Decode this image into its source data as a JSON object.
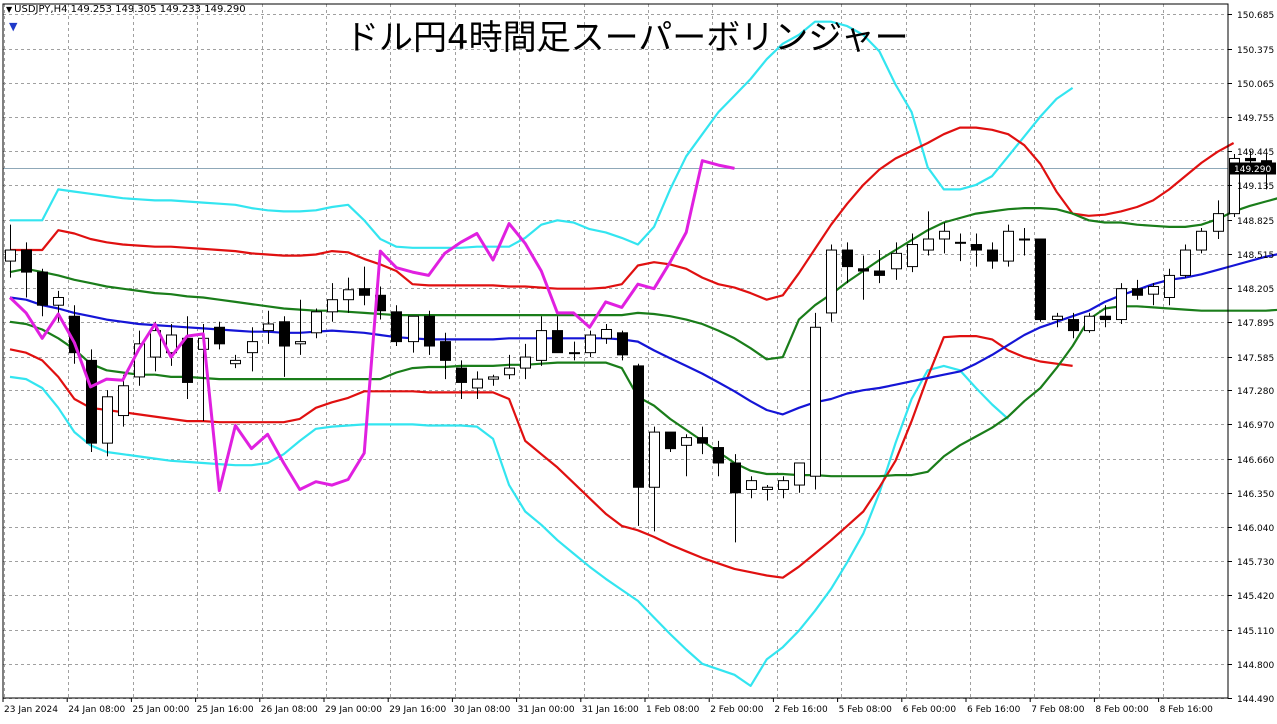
{
  "header": {
    "symbol_line": "USDJPY,H4  149.253 149.305 149.233 149.290",
    "title": "ドル円4時間足スーパーボリンジャー",
    "current_price_label": "149.290"
  },
  "colors": {
    "background": "#ffffff",
    "grid": "#a0a0a0",
    "sma": "#1515d6",
    "band1": "#1a7d1a",
    "band2": "#e01010",
    "band3": "#33e5f0",
    "lagging_span": "#e020e0",
    "candle_bear": "#000000",
    "candle_bull": "#ffffff",
    "price_line": "#8fa8b8",
    "price_badge_bg": "#000000",
    "price_badge_text": "#ffffff"
  },
  "chart_data": {
    "type": "candlestick",
    "ylim": [
      144.49,
      150.78
    ],
    "y_ticks": [
      "150.685",
      "150.375",
      "150.065",
      "149.755",
      "149.445",
      "149.135",
      "148.825",
      "148.515",
      "148.205",
      "147.895",
      "147.585",
      "147.280",
      "146.970",
      "146.660",
      "146.350",
      "146.040",
      "145.730",
      "145.420",
      "145.110",
      "144.800",
      "144.490"
    ],
    "x_ticks": [
      "23 Jan 2024",
      "24 Jan 08:00",
      "25 Jan 00:00",
      "25 Jan 16:00",
      "26 Jan 08:00",
      "29 Jan 00:00",
      "29 Jan 16:00",
      "30 Jan 08:00",
      "31 Jan 00:00",
      "31 Jan 16:00",
      "1 Feb 08:00",
      "2 Feb 00:00",
      "2 Feb 16:00",
      "5 Feb 08:00",
      "6 Feb 00:00",
      "6 Feb 16:00",
      "7 Feb 08:00",
      "8 Feb 00:00",
      "8 Feb 16:00"
    ],
    "last_price": 149.29,
    "candles": [
      {
        "o": 148.45,
        "h": 148.78,
        "l": 148.3,
        "c": 148.55
      },
      {
        "o": 148.55,
        "h": 148.62,
        "l": 148.12,
        "c": 148.35
      },
      {
        "o": 148.35,
        "h": 148.38,
        "l": 147.95,
        "c": 148.05
      },
      {
        "o": 148.05,
        "h": 148.18,
        "l": 147.9,
        "c": 148.12
      },
      {
        "o": 147.95,
        "h": 148.05,
        "l": 147.52,
        "c": 147.62
      },
      {
        "o": 147.55,
        "h": 147.65,
        "l": 146.72,
        "c": 146.8
      },
      {
        "o": 146.8,
        "h": 147.28,
        "l": 146.68,
        "c": 147.22
      },
      {
        "o": 147.05,
        "h": 147.42,
        "l": 146.95,
        "c": 147.32
      },
      {
        "o": 147.4,
        "h": 147.82,
        "l": 147.32,
        "c": 147.7
      },
      {
        "o": 147.58,
        "h": 147.9,
        "l": 147.45,
        "c": 147.82
      },
      {
        "o": 147.62,
        "h": 147.88,
        "l": 147.5,
        "c": 147.78
      },
      {
        "o": 147.75,
        "h": 147.95,
        "l": 147.2,
        "c": 147.35
      },
      {
        "o": 147.65,
        "h": 147.88,
        "l": 147.0,
        "c": 147.75
      },
      {
        "o": 147.85,
        "h": 147.9,
        "l": 147.65,
        "c": 147.7
      },
      {
        "o": 147.52,
        "h": 147.6,
        "l": 147.48,
        "c": 147.55
      },
      {
        "o": 147.62,
        "h": 147.85,
        "l": 147.45,
        "c": 147.72
      },
      {
        "o": 147.82,
        "h": 148.0,
        "l": 147.7,
        "c": 147.88
      },
      {
        "o": 147.9,
        "h": 147.95,
        "l": 147.4,
        "c": 147.68
      },
      {
        "o": 147.7,
        "h": 148.1,
        "l": 147.6,
        "c": 147.72
      },
      {
        "o": 147.8,
        "h": 148.02,
        "l": 147.75,
        "c": 147.99
      },
      {
        "o": 147.99,
        "h": 148.25,
        "l": 147.9,
        "c": 148.1
      },
      {
        "o": 148.1,
        "h": 148.3,
        "l": 147.98,
        "c": 148.19
      },
      {
        "o": 148.2,
        "h": 148.4,
        "l": 148.05,
        "c": 148.14
      },
      {
        "o": 148.14,
        "h": 148.22,
        "l": 147.92,
        "c": 148.0
      },
      {
        "o": 147.99,
        "h": 148.05,
        "l": 147.68,
        "c": 147.72
      },
      {
        "o": 147.72,
        "h": 147.92,
        "l": 147.62,
        "c": 147.95
      },
      {
        "o": 147.95,
        "h": 148.0,
        "l": 147.6,
        "c": 147.68
      },
      {
        "o": 147.72,
        "h": 147.8,
        "l": 147.38,
        "c": 147.55
      },
      {
        "o": 147.48,
        "h": 147.55,
        "l": 147.2,
        "c": 147.35
      },
      {
        "o": 147.3,
        "h": 147.45,
        "l": 147.2,
        "c": 147.38
      },
      {
        "o": 147.38,
        "h": 147.42,
        "l": 147.32,
        "c": 147.4
      },
      {
        "o": 147.42,
        "h": 147.6,
        "l": 147.38,
        "c": 147.48
      },
      {
        "o": 147.48,
        "h": 147.7,
        "l": 147.38,
        "c": 147.58
      },
      {
        "o": 147.55,
        "h": 147.95,
        "l": 147.5,
        "c": 147.82
      },
      {
        "o": 147.82,
        "h": 147.95,
        "l": 147.62,
        "c": 147.62
      },
      {
        "o": 147.62,
        "h": 147.72,
        "l": 147.55,
        "c": 147.62
      },
      {
        "o": 147.62,
        "h": 147.82,
        "l": 147.58,
        "c": 147.78
      },
      {
        "o": 147.75,
        "h": 147.88,
        "l": 147.7,
        "c": 147.83
      },
      {
        "o": 147.8,
        "h": 147.82,
        "l": 147.55,
        "c": 147.6
      },
      {
        "o": 147.5,
        "h": 147.52,
        "l": 146.05,
        "c": 146.4
      },
      {
        "o": 146.4,
        "h": 146.95,
        "l": 146.0,
        "c": 146.9
      },
      {
        "o": 146.9,
        "h": 146.9,
        "l": 146.72,
        "c": 146.75
      },
      {
        "o": 146.78,
        "h": 146.88,
        "l": 146.5,
        "c": 146.85
      },
      {
        "o": 146.85,
        "h": 146.95,
        "l": 146.7,
        "c": 146.8
      },
      {
        "o": 146.76,
        "h": 146.82,
        "l": 146.5,
        "c": 146.62
      },
      {
        "o": 146.62,
        "h": 146.7,
        "l": 145.9,
        "c": 146.35
      },
      {
        "o": 146.38,
        "h": 146.5,
        "l": 146.3,
        "c": 146.46
      },
      {
        "o": 146.38,
        "h": 146.42,
        "l": 146.28,
        "c": 146.4
      },
      {
        "o": 146.38,
        "h": 146.5,
        "l": 146.3,
        "c": 146.46
      },
      {
        "o": 146.42,
        "h": 146.62,
        "l": 146.35,
        "c": 146.62
      },
      {
        "o": 146.5,
        "h": 147.98,
        "l": 146.38,
        "c": 147.85
      },
      {
        "o": 147.98,
        "h": 148.6,
        "l": 147.9,
        "c": 148.55
      },
      {
        "o": 148.55,
        "h": 148.62,
        "l": 148.25,
        "c": 148.4
      },
      {
        "o": 148.38,
        "h": 148.5,
        "l": 148.1,
        "c": 148.36
      },
      {
        "o": 148.36,
        "h": 148.55,
        "l": 148.25,
        "c": 148.32
      },
      {
        "o": 148.38,
        "h": 148.62,
        "l": 148.28,
        "c": 148.52
      },
      {
        "o": 148.4,
        "h": 148.7,
        "l": 148.35,
        "c": 148.6
      },
      {
        "o": 148.55,
        "h": 148.9,
        "l": 148.5,
        "c": 148.65
      },
      {
        "o": 148.65,
        "h": 148.8,
        "l": 148.52,
        "c": 148.72
      },
      {
        "o": 148.62,
        "h": 148.7,
        "l": 148.45,
        "c": 148.62
      },
      {
        "o": 148.6,
        "h": 148.7,
        "l": 148.4,
        "c": 148.55
      },
      {
        "o": 148.55,
        "h": 148.62,
        "l": 148.38,
        "c": 148.45
      },
      {
        "o": 148.45,
        "h": 148.78,
        "l": 148.4,
        "c": 148.72
      },
      {
        "o": 148.65,
        "h": 148.75,
        "l": 148.5,
        "c": 148.65
      },
      {
        "o": 148.65,
        "h": 148.65,
        "l": 147.9,
        "c": 147.92
      },
      {
        "o": 147.92,
        "h": 147.98,
        "l": 147.85,
        "c": 147.95
      },
      {
        "o": 147.92,
        "h": 147.98,
        "l": 147.75,
        "c": 147.82
      },
      {
        "o": 147.82,
        "h": 147.98,
        "l": 147.8,
        "c": 147.95
      },
      {
        "o": 147.95,
        "h": 148.05,
        "l": 147.85,
        "c": 147.92
      },
      {
        "o": 147.92,
        "h": 148.25,
        "l": 147.88,
        "c": 148.2
      },
      {
        "o": 148.2,
        "h": 148.28,
        "l": 148.1,
        "c": 148.14
      },
      {
        "o": 148.15,
        "h": 148.25,
        "l": 148.05,
        "c": 148.22
      },
      {
        "o": 148.12,
        "h": 148.38,
        "l": 148.05,
        "c": 148.32
      },
      {
        "o": 148.32,
        "h": 148.6,
        "l": 148.3,
        "c": 148.55
      },
      {
        "o": 148.55,
        "h": 148.75,
        "l": 148.52,
        "c": 148.72
      },
      {
        "o": 148.72,
        "h": 149.0,
        "l": 148.65,
        "c": 148.88
      },
      {
        "o": 148.88,
        "h": 149.42,
        "l": 148.85,
        "c": 149.38
      },
      {
        "o": 149.38,
        "h": 149.45,
        "l": 149.3,
        "c": 149.36
      },
      {
        "o": 149.36,
        "h": 149.42,
        "l": 149.1,
        "c": 149.32
      },
      {
        "o": 149.25,
        "h": 149.31,
        "l": 149.23,
        "c": 149.29
      }
    ],
    "sma": [
      148.12,
      148.1,
      148.05,
      148.02,
      147.98,
      147.95,
      147.92,
      147.9,
      147.88,
      147.87,
      147.86,
      147.85,
      147.84,
      147.83,
      147.82,
      147.81,
      147.81,
      147.8,
      147.8,
      147.81,
      147.82,
      147.81,
      147.8,
      147.78,
      147.76,
      147.75,
      147.74,
      147.74,
      147.74,
      147.74,
      147.74,
      147.75,
      147.75,
      147.75,
      147.75,
      147.75,
      147.75,
      147.75,
      147.74,
      147.72,
      147.64,
      147.57,
      147.5,
      147.43,
      147.35,
      147.27,
      147.18,
      147.1,
      147.06,
      147.12,
      147.17,
      147.2,
      147.25,
      147.28,
      147.3,
      147.33,
      147.36,
      147.39,
      147.42,
      147.45,
      147.52,
      147.6,
      147.69,
      147.78,
      147.85,
      147.9,
      147.95,
      148.0,
      148.08,
      148.14,
      148.19,
      148.24,
      148.28,
      148.3,
      148.33,
      148.37,
      148.41,
      148.45,
      148.49,
      148.52
    ],
    "band_plus1": [
      148.35,
      148.38,
      148.35,
      148.32,
      148.28,
      148.25,
      148.22,
      148.2,
      148.18,
      148.16,
      148.15,
      148.13,
      148.12,
      148.1,
      148.08,
      148.06,
      148.04,
      148.02,
      148.01,
      148.0,
      148.0,
      147.99,
      147.98,
      147.97,
      147.96,
      147.96,
      147.96,
      147.96,
      147.96,
      147.96,
      147.96,
      147.96,
      147.96,
      147.96,
      147.96,
      147.96,
      147.96,
      147.96,
      147.96,
      147.98,
      147.97,
      147.95,
      147.92,
      147.88,
      147.82,
      147.75,
      147.66,
      147.56,
      147.58,
      147.92,
      148.05,
      148.15,
      148.26,
      148.36,
      148.46,
      148.55,
      148.64,
      148.73,
      148.8,
      148.84,
      148.88,
      148.9,
      148.92,
      148.93,
      148.93,
      148.92,
      148.88,
      148.82,
      148.8,
      148.8,
      148.78,
      148.77,
      148.76,
      148.76,
      148.78,
      148.83,
      148.9,
      148.95,
      148.99,
      149.03
    ],
    "band_minus1": [
      147.9,
      147.88,
      147.83,
      147.75,
      147.65,
      147.52,
      147.46,
      147.44,
      147.42,
      147.42,
      147.4,
      147.4,
      147.39,
      147.38,
      147.38,
      147.38,
      147.38,
      147.38,
      147.38,
      147.38,
      147.38,
      147.38,
      147.38,
      147.38,
      147.44,
      147.48,
      147.49,
      147.49,
      147.5,
      147.5,
      147.5,
      147.51,
      147.51,
      147.52,
      147.53,
      147.53,
      147.53,
      147.53,
      147.48,
      147.22,
      147.14,
      147.02,
      146.92,
      146.82,
      146.72,
      146.62,
      146.55,
      146.52,
      146.52,
      146.51,
      146.51,
      146.5,
      146.5,
      146.5,
      146.5,
      146.51,
      146.51,
      146.54,
      146.68,
      146.78,
      146.86,
      146.94,
      147.04,
      147.18,
      147.3,
      147.48,
      147.68,
      147.92,
      148.02,
      148.04,
      148.04,
      148.03,
      148.02,
      148.01,
      148.0,
      148.0,
      148.0,
      148.0,
      148.0,
      148.01
    ],
    "band_plus2": [
      148.55,
      148.55,
      148.55,
      148.73,
      148.7,
      148.65,
      148.62,
      148.6,
      148.59,
      148.58,
      148.58,
      148.57,
      148.56,
      148.55,
      148.54,
      148.52,
      148.51,
      148.5,
      148.5,
      148.51,
      148.54,
      148.53,
      148.47,
      148.42,
      148.36,
      148.24,
      148.23,
      148.23,
      148.23,
      148.23,
      148.23,
      148.22,
      148.22,
      148.21,
      148.2,
      148.2,
      148.2,
      148.21,
      148.24,
      148.41,
      148.44,
      148.42,
      148.38,
      148.3,
      148.24,
      148.21,
      148.16,
      148.1,
      148.14,
      148.34,
      148.56,
      148.78,
      148.97,
      149.14,
      149.28,
      149.38,
      149.45,
      149.52,
      149.6,
      149.66,
      149.66,
      149.64,
      149.6,
      149.5,
      149.33,
      149.08,
      148.88,
      148.86,
      148.87,
      148.9,
      148.94,
      149.0,
      149.1,
      149.22,
      149.34,
      149.44,
      149.52
    ],
    "band_minus2": [
      147.65,
      147.62,
      147.55,
      147.4,
      147.2,
      147.12,
      147.1,
      147.08,
      147.06,
      147.04,
      147.02,
      147.0,
      147.0,
      146.99,
      146.99,
      146.99,
      146.99,
      146.99,
      147.02,
      147.12,
      147.17,
      147.21,
      147.27,
      147.27,
      147.27,
      147.27,
      147.26,
      147.26,
      147.26,
      147.26,
      147.26,
      147.2,
      146.82,
      146.7,
      146.58,
      146.44,
      146.3,
      146.16,
      146.05,
      146.01,
      145.95,
      145.88,
      145.82,
      145.76,
      145.71,
      145.66,
      145.63,
      145.6,
      145.58,
      145.68,
      145.8,
      145.92,
      146.05,
      146.18,
      146.4,
      146.64,
      147.0,
      147.4,
      147.76,
      147.77,
      147.77,
      147.74,
      147.64,
      147.58,
      147.54,
      147.52,
      147.5
    ],
    "band_plus3": [
      148.82,
      148.82,
      148.82,
      149.1,
      149.08,
      149.06,
      149.04,
      149.02,
      149.01,
      149.0,
      149.0,
      148.99,
      148.98,
      148.97,
      148.96,
      148.93,
      148.91,
      148.9,
      148.9,
      148.91,
      148.94,
      148.96,
      148.82,
      148.65,
      148.58,
      148.57,
      148.57,
      148.57,
      148.57,
      148.58,
      148.58,
      148.58,
      148.66,
      148.78,
      148.82,
      148.8,
      148.74,
      148.71,
      148.66,
      148.6,
      148.76,
      149.1,
      149.4,
      149.6,
      149.8,
      149.95,
      150.1,
      150.28,
      150.42,
      150.5,
      150.62,
      150.62,
      150.58,
      150.5,
      150.35,
      150.05,
      149.8,
      149.3,
      149.1,
      149.1,
      149.14,
      149.22,
      149.4,
      149.58,
      149.76,
      149.92,
      150.02
    ],
    "band_minus3": [
      147.4,
      147.38,
      147.3,
      147.12,
      146.9,
      146.78,
      146.72,
      146.7,
      146.68,
      146.66,
      146.64,
      146.63,
      146.62,
      146.61,
      146.6,
      146.6,
      146.62,
      146.7,
      146.82,
      146.93,
      146.95,
      146.96,
      146.97,
      146.97,
      146.97,
      146.97,
      146.96,
      146.96,
      146.96,
      146.95,
      146.84,
      146.42,
      146.18,
      146.06,
      145.92,
      145.8,
      145.68,
      145.57,
      145.47,
      145.37,
      145.22,
      145.07,
      144.93,
      144.8,
      144.75,
      144.7,
      144.6,
      144.84,
      144.95,
      145.1,
      145.28,
      145.48,
      145.72,
      145.98,
      146.35,
      146.8,
      147.2,
      147.46,
      147.5,
      147.46,
      147.3,
      147.15,
      147.02
    ],
    "lagging_span": [
      148.12,
      147.98,
      147.75,
      147.97,
      147.71,
      147.31,
      147.38,
      147.37,
      147.65,
      147.88,
      147.58,
      147.77,
      147.79,
      146.37,
      146.96,
      146.75,
      146.88,
      146.62,
      146.38,
      146.45,
      146.42,
      146.47,
      146.71,
      148.54,
      148.39,
      148.35,
      148.32,
      148.52,
      148.62,
      148.7,
      148.46,
      148.79,
      148.61,
      148.36,
      147.98,
      147.98,
      147.85,
      148.08,
      148.03,
      148.24,
      148.2,
      148.44,
      148.71,
      149.36,
      149.32,
      149.29
    ]
  }
}
